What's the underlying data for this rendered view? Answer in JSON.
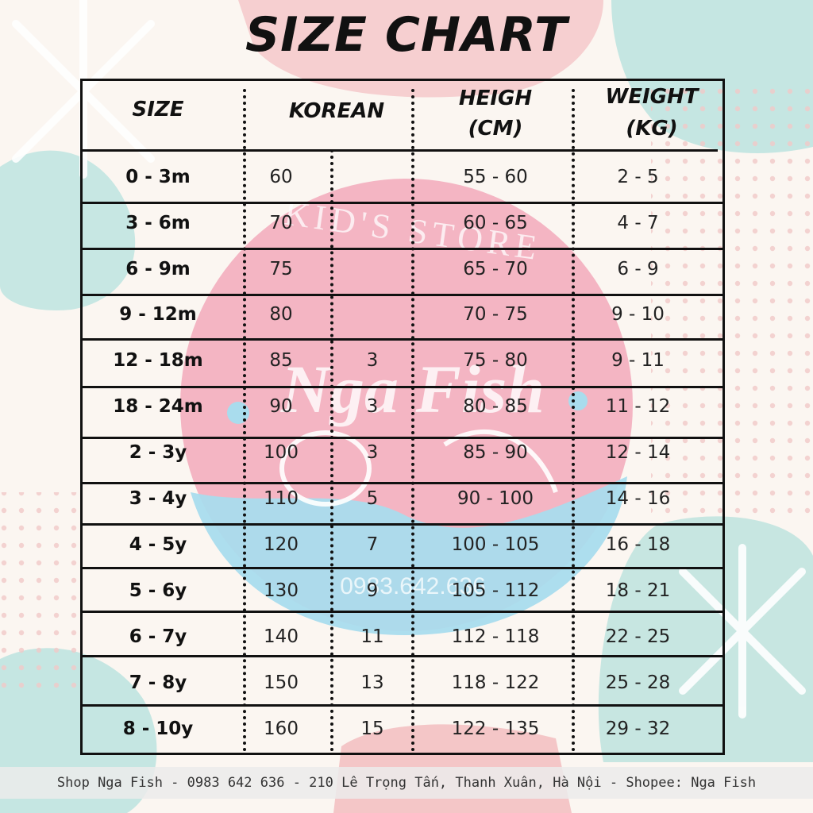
{
  "title": "SIZE CHART",
  "watermark": {
    "store_text": "KID'S STORE",
    "brand_text": "Nga Fish",
    "phone_text": "0983.642.636"
  },
  "table": {
    "headers": {
      "size": "SIZE",
      "korean": "KOREAN",
      "height_line1": "HEIGH",
      "height_line2": "(CM)",
      "weight_line1": "WEIGHT",
      "weight_line2": "(KG)"
    },
    "rows": [
      {
        "size": "0 - 3m",
        "korean": "60",
        "korean2": "",
        "height": "55 - 60",
        "weight": "2 - 5"
      },
      {
        "size": "3 - 6m",
        "korean": "70",
        "korean2": "",
        "height": "60 - 65",
        "weight": "4 - 7"
      },
      {
        "size": "6 - 9m",
        "korean": "75",
        "korean2": "",
        "height": "65 - 70",
        "weight": "6 - 9"
      },
      {
        "size": "9 - 12m",
        "korean": "80",
        "korean2": "",
        "height": "70 - 75",
        "weight": "9 - 10"
      },
      {
        "size": "12 - 18m",
        "korean": "85",
        "korean2": "3",
        "height": "75 - 80",
        "weight": "9 - 11"
      },
      {
        "size": "18 - 24m",
        "korean": "90",
        "korean2": "3",
        "height": "80 - 85",
        "weight": "11 - 12"
      },
      {
        "size": "2 - 3y",
        "korean": "100",
        "korean2": "3",
        "height": "85 - 90",
        "weight": "12 - 14"
      },
      {
        "size": "3 - 4y",
        "korean": "110",
        "korean2": "5",
        "height": "90 - 100",
        "weight": "14 - 16"
      },
      {
        "size": "4 - 5y",
        "korean": "120",
        "korean2": "7",
        "height": "100 - 105",
        "weight": "16 - 18"
      },
      {
        "size": "5 - 6y",
        "korean": "130",
        "korean2": "9",
        "height": "105 - 112",
        "weight": "18 - 21"
      },
      {
        "size": "6 - 7y",
        "korean": "140",
        "korean2": "11",
        "height": "112 - 118",
        "weight": "22 - 25"
      },
      {
        "size": "7 - 8y",
        "korean": "150",
        "korean2": "13",
        "height": "118 - 122",
        "weight": "25 - 28"
      },
      {
        "size": "8 - 10y",
        "korean": "160",
        "korean2": "15",
        "height": "122 - 135",
        "weight": "29 - 32"
      }
    ]
  },
  "footer": "Shop Nga Fish - 0983 642 636 - 210 Lê Trọng Tấn, Thanh Xuân, Hà Nội - Shopee: Nga Fish",
  "colors": {
    "pink": "#f6c9cc",
    "teal": "#bfe3df",
    "watermark_pink": "#f2a6b8",
    "watermark_blue": "#a9dced"
  }
}
